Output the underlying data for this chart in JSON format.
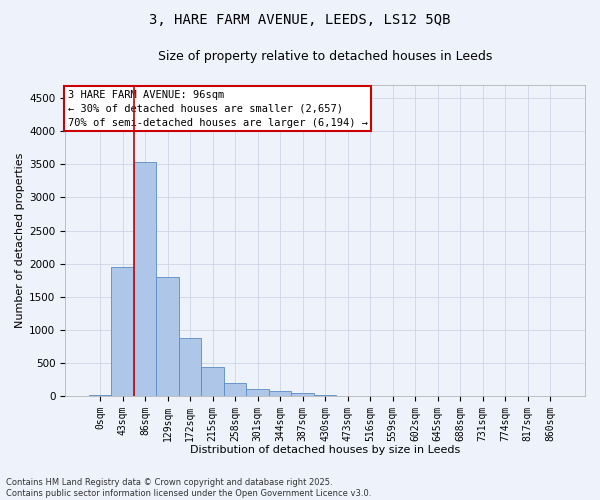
{
  "title_line1": "3, HARE FARM AVENUE, LEEDS, LS12 5QB",
  "title_line2": "Size of property relative to detached houses in Leeds",
  "xlabel": "Distribution of detached houses by size in Leeds",
  "ylabel": "Number of detached properties",
  "bar_labels": [
    "0sqm",
    "43sqm",
    "86sqm",
    "129sqm",
    "172sqm",
    "215sqm",
    "258sqm",
    "301sqm",
    "344sqm",
    "387sqm",
    "430sqm",
    "473sqm",
    "516sqm",
    "559sqm",
    "602sqm",
    "645sqm",
    "688sqm",
    "731sqm",
    "774sqm",
    "817sqm",
    "860sqm"
  ],
  "bar_values": [
    20,
    1950,
    3530,
    1800,
    870,
    430,
    190,
    100,
    70,
    40,
    15,
    5,
    0,
    0,
    0,
    0,
    0,
    0,
    0,
    0,
    0
  ],
  "bar_color": "#aec6e8",
  "bar_edge_color": "#5b8cc8",
  "vline_color": "#cc0000",
  "vline_pos": 1.5,
  "ylim_max": 4700,
  "yticks": [
    0,
    500,
    1000,
    1500,
    2000,
    2500,
    3000,
    3500,
    4000,
    4500
  ],
  "annotation_title": "3 HARE FARM AVENUE: 96sqm",
  "annotation_line1": "← 30% of detached houses are smaller (2,657)",
  "annotation_line2": "70% of semi-detached houses are larger (6,194) →",
  "annotation_box_color": "#cc0000",
  "background_color": "#eef2fb",
  "grid_color": "#c8cfe0",
  "footer_line1": "Contains HM Land Registry data © Crown copyright and database right 2025.",
  "footer_line2": "Contains public sector information licensed under the Open Government Licence v3.0.",
  "title_fontsize": 10,
  "subtitle_fontsize": 9,
  "tick_fontsize": 7,
  "ylabel_fontsize": 8,
  "xlabel_fontsize": 8,
  "footer_fontsize": 6,
  "annot_fontsize": 7.5
}
